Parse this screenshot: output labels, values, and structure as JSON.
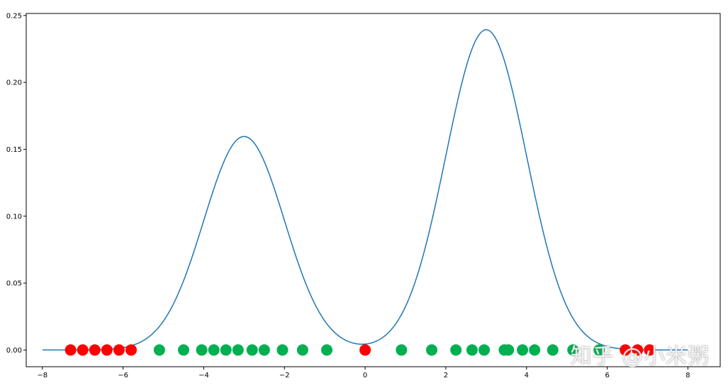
{
  "chart_data": {
    "type": "line",
    "title": "",
    "xlabel": "",
    "ylabel": "",
    "xlim": [
      -8.4,
      8.8
    ],
    "ylim": [
      -0.0125,
      0.2515
    ],
    "xticks": [
      -8,
      -6,
      -4,
      -2,
      0,
      2,
      4,
      6,
      8
    ],
    "xtick_labels": [
      "−8",
      "−6",
      "−4",
      "−2",
      "0",
      "2",
      "4",
      "6",
      "8"
    ],
    "yticks": [
      0.0,
      0.05,
      0.1,
      0.15,
      0.2,
      0.25
    ],
    "ytick_labels": [
      "0.00",
      "0.05",
      "0.10",
      "0.15",
      "0.20",
      "0.25"
    ],
    "grid": false,
    "series": [
      {
        "kind": "line",
        "color": "#1f77b4",
        "function": "gaussian-mixture",
        "components": [
          {
            "weight": 0.4,
            "mean": -3,
            "std": 1
          },
          {
            "weight": 0.6,
            "mean": 3,
            "std": 1
          }
        ],
        "x_range": [
          -8,
          8
        ]
      },
      {
        "kind": "scatter",
        "color": "#ff0000",
        "y": 0,
        "x": [
          -7.3,
          -7.0,
          -6.7,
          -6.4,
          -6.1,
          -5.8,
          0.0,
          6.45,
          6.75,
          7.05
        ]
      },
      {
        "kind": "scatter",
        "color": "#00b050",
        "y": 0,
        "x": [
          -5.1,
          -4.5,
          -4.05,
          -3.75,
          -3.45,
          -3.15,
          -2.8,
          -2.5,
          -2.05,
          -1.55,
          -0.95,
          0.9,
          1.65,
          2.25,
          2.65,
          2.95,
          3.45,
          3.55,
          3.9,
          4.2,
          4.65,
          5.15,
          5.8
        ]
      }
    ]
  },
  "watermark": "知乎 @小米粥"
}
